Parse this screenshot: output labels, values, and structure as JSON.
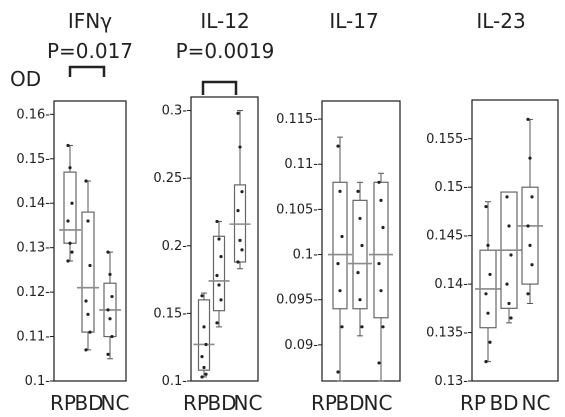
{
  "ylabel": "OD",
  "group_labels": [
    "RP",
    "BD",
    "NC"
  ],
  "colors": {
    "frame": "#1a1a1a",
    "box": "#666666",
    "whisker": "#555555",
    "median": "#8a8a8a",
    "point": "#222222",
    "bracket": "#222222"
  },
  "chart_data": [
    {
      "type": "box",
      "title": "IFNγ",
      "pvalue_label": "P=0.017",
      "bracket_between": [
        "RP",
        "BD"
      ],
      "ylim": [
        0.1,
        0.163
      ],
      "yticks": [
        0.1,
        0.11,
        0.12,
        0.13,
        0.14,
        0.15,
        0.16
      ],
      "ytick_labels": [
        "0.1",
        "0.11",
        "0.12",
        "0.13",
        "0.14",
        "0.15",
        "0.16"
      ],
      "boxes": [
        {
          "group": "RP",
          "min": 0.127,
          "q1": 0.131,
          "median": 0.134,
          "q3": 0.147,
          "max": 0.153,
          "points": [
            0.153,
            0.148,
            0.14,
            0.136,
            0.131,
            0.129,
            0.127
          ]
        },
        {
          "group": "BD",
          "min": 0.107,
          "q1": 0.111,
          "median": 0.121,
          "q3": 0.138,
          "max": 0.145,
          "points": [
            0.145,
            0.136,
            0.126,
            0.118,
            0.115,
            0.111,
            0.107
          ]
        },
        {
          "group": "NC",
          "min": 0.105,
          "q1": 0.11,
          "median": 0.116,
          "q3": 0.122,
          "max": 0.129,
          "points": [
            0.129,
            0.124,
            0.119,
            0.116,
            0.114,
            0.11,
            0.106
          ]
        }
      ]
    },
    {
      "type": "box",
      "title": "IL-12",
      "pvalue_label": "P=0.0019",
      "bracket_between": [
        "RP",
        "BD"
      ],
      "ylim": [
        0.1,
        0.31
      ],
      "yticks": [
        0.1,
        0.15,
        0.2,
        0.25,
        0.3
      ],
      "ytick_labels": [
        "0.1",
        "0.15",
        "0.2",
        "0.25",
        "0.3"
      ],
      "boxes": [
        {
          "group": "RP",
          "min": 0.103,
          "q1": 0.108,
          "median": 0.127,
          "q3": 0.16,
          "max": 0.165,
          "points": [
            0.163,
            0.14,
            0.127,
            0.118,
            0.11,
            0.105,
            0.103
          ]
        },
        {
          "group": "BD",
          "min": 0.14,
          "q1": 0.152,
          "median": 0.174,
          "q3": 0.207,
          "max": 0.218,
          "points": [
            0.218,
            0.205,
            0.192,
            0.178,
            0.171,
            0.16,
            0.143
          ]
        },
        {
          "group": "NC",
          "min": 0.183,
          "q1": 0.188,
          "median": 0.216,
          "q3": 0.245,
          "max": 0.3,
          "points": [
            0.298,
            0.273,
            0.24,
            0.226,
            0.204,
            0.197,
            0.188
          ]
        }
      ]
    },
    {
      "type": "box",
      "title": "IL-17",
      "pvalue_label": "",
      "ylim": [
        0.086,
        0.117
      ],
      "yticks": [
        0.09,
        0.095,
        0.1,
        0.105,
        0.11,
        0.115
      ],
      "ytick_labels": [
        "0.09",
        "0.095",
        "0.1",
        "0.105",
        "0.11",
        "0.115"
      ],
      "boxes": [
        {
          "group": "RP",
          "min": 0.086,
          "q1": 0.094,
          "median": 0.1,
          "q3": 0.108,
          "max": 0.113,
          "points": [
            0.112,
            0.107,
            0.102,
            0.099,
            0.096,
            0.092,
            0.087
          ]
        },
        {
          "group": "BD",
          "min": 0.091,
          "q1": 0.094,
          "median": 0.099,
          "q3": 0.106,
          "max": 0.108,
          "points": [
            0.107,
            0.104,
            0.101,
            0.098,
            0.095,
            0.092
          ]
        },
        {
          "group": "NC",
          "min": 0.086,
          "q1": 0.093,
          "median": 0.1,
          "q3": 0.108,
          "max": 0.109,
          "points": [
            0.108,
            0.106,
            0.103,
            0.099,
            0.096,
            0.092,
            0.088
          ]
        }
      ]
    },
    {
      "type": "box",
      "title": "IL-23",
      "pvalue_label": "",
      "ylim": [
        0.13,
        0.159
      ],
      "yticks": [
        0.13,
        0.135,
        0.14,
        0.145,
        0.15,
        0.155
      ],
      "ytick_labels": [
        "0.13-",
        "0.135",
        "0.14",
        "0.145",
        "0.15",
        "0.155"
      ],
      "boxes": [
        {
          "group": "RP",
          "min": 0.132,
          "q1": 0.1355,
          "median": 0.1395,
          "q3": 0.1435,
          "max": 0.1485,
          "points": [
            0.148,
            0.144,
            0.141,
            0.139,
            0.137,
            0.134,
            0.132
          ]
        },
        {
          "group": "BD",
          "min": 0.136,
          "q1": 0.1375,
          "median": 0.1435,
          "q3": 0.1495,
          "max": 0.1495,
          "points": [
            0.149,
            0.146,
            0.143,
            0.14,
            0.138,
            0.1365
          ]
        },
        {
          "group": "NC",
          "min": 0.138,
          "q1": 0.14,
          "median": 0.146,
          "q3": 0.15,
          "max": 0.157,
          "points": [
            0.157,
            0.153,
            0.149,
            0.146,
            0.144,
            0.142,
            0.139
          ]
        }
      ]
    }
  ]
}
